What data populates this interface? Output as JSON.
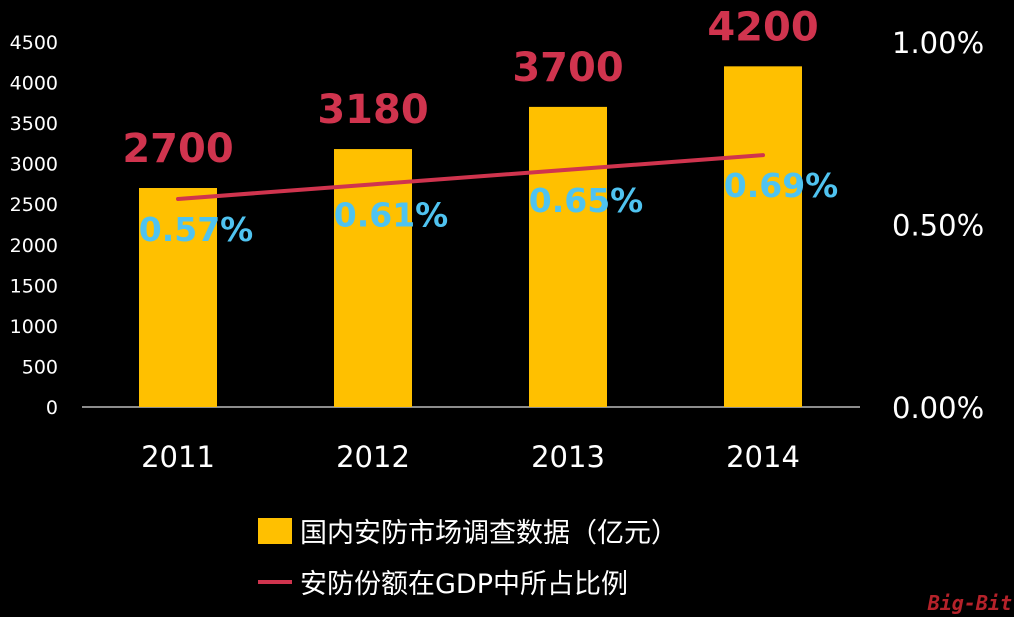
{
  "chart_data": {
    "type": "bar",
    "categories": [
      "2011",
      "2012",
      "2013",
      "2014"
    ],
    "series": [
      {
        "name": "国内安防市场调查数据（亿元）",
        "type": "bar",
        "axis": "left",
        "values": [
          2700,
          3180,
          3700,
          4200
        ],
        "labels": [
          "2700",
          "3180",
          "3700",
          "4200"
        ],
        "color": "#FFC000"
      },
      {
        "name": "安防份额在GDP中所占比例",
        "type": "line",
        "axis": "right",
        "values": [
          0.57,
          0.61,
          0.65,
          0.69
        ],
        "labels": [
          "0.57%",
          "0.61%",
          "0.65%",
          "0.69%"
        ],
        "color": "#D0344E"
      }
    ],
    "y_left": {
      "ylim": [
        0,
        4500
      ],
      "ticks": [
        "0",
        "500",
        "1000",
        "1500",
        "2000",
        "2500",
        "3000",
        "3500",
        "4000",
        "4500"
      ]
    },
    "y_right": {
      "ylim": [
        0,
        1.0
      ],
      "ticks": [
        "0.00%",
        "0.50%",
        "1.00%"
      ]
    },
    "bar_label_color": "#D0344E",
    "line_label_color": "#4FC3F0",
    "grid": false,
    "legend_position": "bottom"
  },
  "legend": {
    "bar": "国内安防市场调查数据（亿元）",
    "line": "安防份额在GDP中所占比例"
  },
  "watermark": "Big-Bit"
}
